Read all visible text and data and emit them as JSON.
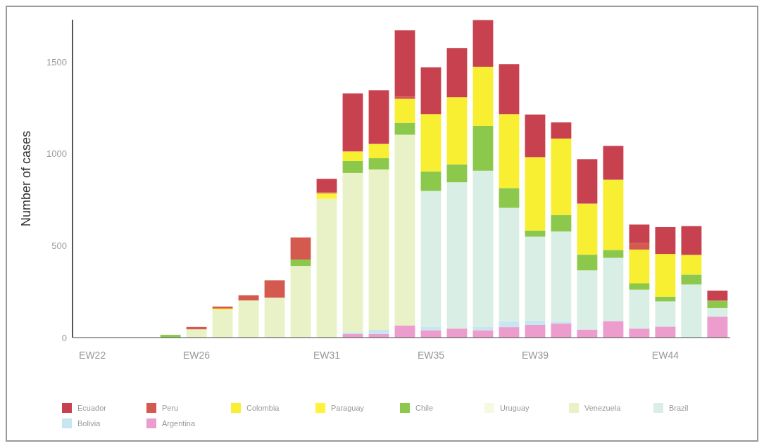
{
  "chart_data": {
    "type": "bar",
    "stacked": true,
    "ylabel": "Number of cases",
    "categories": [
      "EW22",
      null,
      null,
      null,
      "EW26",
      null,
      null,
      null,
      null,
      "EW31",
      null,
      null,
      null,
      "EW35",
      null,
      null,
      null,
      "EW39",
      null,
      null,
      null,
      null,
      "EW44",
      null,
      null
    ],
    "ylim": [
      0,
      1730
    ],
    "yticks": [
      0,
      500,
      1000,
      1500
    ],
    "grid": false,
    "legend": "bottom",
    "series": [
      {
        "name": "Argentina",
        "color": "#ec9ccd",
        "values": [
          0,
          0,
          0,
          0,
          0,
          0,
          0,
          0,
          0,
          null,
          19,
          19,
          65,
          40,
          49,
          40,
          57,
          69,
          76,
          44,
          90,
          49,
          60,
          0,
          114
        ]
      },
      {
        "name": "Bolivia",
        "color": "#c8e6f0",
        "values": [
          0,
          0,
          0,
          0,
          0,
          0,
          0,
          0,
          0,
          0,
          8,
          23,
          0,
          20,
          0,
          20,
          32,
          24,
          11,
          null,
          0,
          0,
          0,
          null,
          0
        ]
      },
      {
        "name": "Brazil",
        "color": "#d9efe6",
        "values": [
          0,
          0,
          0,
          0,
          0,
          0,
          0,
          0,
          0,
          0,
          0,
          0,
          0,
          738,
          796,
          848,
          617,
          456,
          490,
          322,
          344,
          212,
          137,
          289,
          47
        ]
      },
      {
        "name": "Venezuela",
        "color": "#e8f2c6",
        "values": [
          null,
          0,
          null,
          0,
          45,
          150,
          202,
          217,
          390,
          755,
          869,
          873,
          1039,
          0,
          0,
          0,
          0,
          0,
          0,
          0,
          0,
          0,
          0,
          0,
          0
        ]
      },
      {
        "name": "Uruguay",
        "color": "#f7f9e2",
        "values": [
          0,
          0,
          0,
          0,
          0,
          0,
          0,
          0,
          0,
          0,
          0,
          0,
          0,
          0,
          0,
          0,
          0,
          0,
          0,
          0,
          0,
          0,
          0,
          0,
          0
        ]
      },
      {
        "name": "Chile",
        "color": "#8cc84b",
        "values": [
          0,
          0,
          0,
          15,
          0,
          0,
          0,
          0,
          35,
          0,
          65,
          61,
          65,
          107,
          98,
          244,
          108,
          34,
          90,
          85,
          43,
          34,
          26,
          54,
          40
        ]
      },
      {
        "name": "Paraguay",
        "color": "#fff23a",
        "values": [
          0,
          0,
          0,
          0,
          0,
          8,
          0,
          0,
          0,
          30,
          0,
          0,
          0,
          0,
          0,
          0,
          0,
          0,
          0,
          0,
          0,
          0,
          0,
          0,
          0
        ]
      },
      {
        "name": "Colombia",
        "color": "#f8ee32",
        "values": [
          0,
          0,
          0,
          0,
          0,
          0,
          0,
          0,
          0,
          0,
          52,
          78,
          130,
          311,
          365,
          322,
          402,
          399,
          416,
          278,
          382,
          184,
          232,
          107,
          0
        ]
      },
      {
        "name": "Peru",
        "color": "#d45a50",
        "values": [
          0,
          0,
          0,
          0,
          13,
          11,
          28,
          95,
          120,
          5,
          0,
          0,
          13,
          0,
          0,
          0,
          0,
          0,
          0,
          0,
          0,
          37,
          0,
          0,
          0
        ]
      },
      {
        "name": "Ecuador",
        "color": "#c8414f",
        "values": [
          0,
          0,
          0,
          0,
          0,
          0,
          0,
          0,
          0,
          74,
          316,
          292,
          360,
          255,
          268,
          254,
          272,
          232,
          88,
          242,
          184,
          99,
          146,
          157,
          54
        ]
      }
    ]
  }
}
